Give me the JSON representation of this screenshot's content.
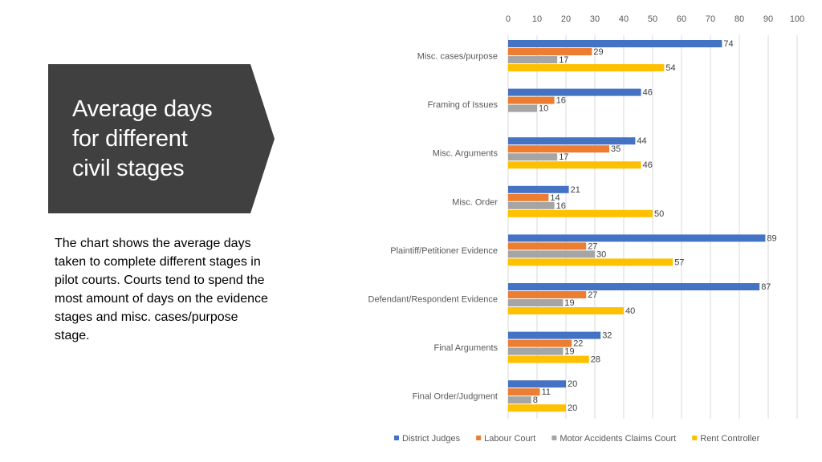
{
  "panel": {
    "title": "Average days\nfor different\ncivil stages",
    "description": "The chart shows the average days taken to complete different stages in pilot courts. Courts tend to spend the most amount of days on the evidence stages and misc. cases/purpose stage."
  },
  "colors": {
    "banner": "#404040",
    "district_judges": "#4472C4",
    "labour_court": "#ED7D31",
    "motor_accidents": "#A5A5A5",
    "rent_controller": "#FFC000",
    "grid": "#D9D9D9"
  },
  "chart_data": {
    "type": "bar",
    "orientation": "horizontal",
    "title": "",
    "xlabel": "",
    "ylabel": "",
    "xlim": [
      0,
      100
    ],
    "x_ticks": [
      0,
      10,
      20,
      30,
      40,
      50,
      60,
      70,
      80,
      90,
      100
    ],
    "x_axis_position": "top",
    "grid": true,
    "legend_position": "bottom",
    "categories": [
      "Misc. cases/purpose",
      "Framing of Issues",
      "Misc. Arguments",
      "Misc. Order",
      "Plaintiff/Petitioner Evidence",
      "Defendant/Respondent Evidence",
      "Final Arguments",
      "Final Order/Judgment"
    ],
    "series": [
      {
        "name": "District Judges",
        "color_key": "district_judges",
        "values": [
          74,
          46,
          44,
          21,
          89,
          87,
          32,
          20
        ]
      },
      {
        "name": "Labour Court",
        "color_key": "labour_court",
        "values": [
          29,
          16,
          35,
          14,
          27,
          27,
          22,
          11
        ]
      },
      {
        "name": "Motor Accidents Claims Court",
        "color_key": "motor_accidents",
        "values": [
          17,
          10,
          17,
          16,
          30,
          19,
          19,
          8
        ]
      },
      {
        "name": "Rent Controller",
        "color_key": "rent_controller",
        "values": [
          54,
          null,
          46,
          50,
          57,
          40,
          28,
          20
        ]
      }
    ]
  }
}
